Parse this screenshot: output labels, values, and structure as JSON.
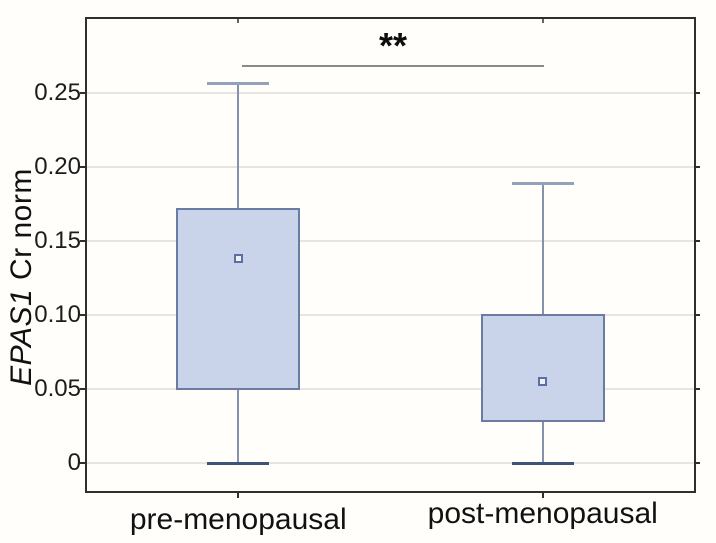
{
  "chart_data": {
    "type": "box",
    "title": "",
    "ylabel_italic": "EPAS1",
    "ylabel_rest": " Cr norm",
    "xlabel": "",
    "categories": [
      "pre-menopausal",
      "post-menopausal"
    ],
    "y_ticks": [
      0,
      0.05,
      0.1,
      0.15,
      0.2,
      0.25
    ],
    "y_tick_labels": [
      "0",
      "0.05",
      "0.10",
      "0.15",
      "0.20",
      "0.25"
    ],
    "ylim": [
      -0.02,
      0.3
    ],
    "grid": "horizontal",
    "legend": "none",
    "marker_meaning": "mean (small open square)",
    "box_meaning": "25%-75%",
    "whisker_meaning": "min-max (non-outlier range)",
    "boxes": [
      {
        "category": "pre-menopausal",
        "whisker_low": 0.0,
        "q1": 0.049,
        "mean": 0.138,
        "q3": 0.172,
        "whisker_high": 0.257
      },
      {
        "category": "post-menopausal",
        "whisker_low": 0.0,
        "q1": 0.028,
        "mean": 0.055,
        "q3": 0.101,
        "whisker_high": 0.189
      }
    ],
    "annotation": {
      "text": "**",
      "between": [
        "pre-menopausal",
        "post-menopausal"
      ],
      "y": 0.268
    },
    "colors": {
      "bg": "#fffefa",
      "frame": "#2f2f2f",
      "grid": "#e8e4e0",
      "box_fill": "#c9d4ea",
      "box_border": "#6a7ca4",
      "whisker": "#8492ad",
      "cap_top": "#93a2ba",
      "cap_bottom": "#3e5377",
      "marker_border": "#5a70a0",
      "marker_fill": "#eef2f8",
      "sig_line": "#8a8a8a",
      "text": "#111111"
    }
  }
}
